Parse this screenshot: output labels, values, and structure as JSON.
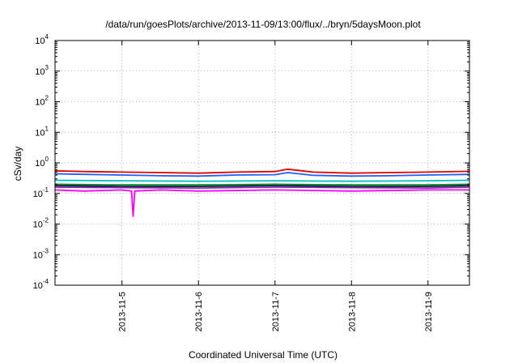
{
  "chart_data": {
    "type": "line",
    "title": "/data/run/goesPlots/archive/2013-11-09/13:00/flux/../bryn/5daysMoon.plot",
    "xlabel": "Coordinated Universal Time (UTC)",
    "ylabel": "cSv/day",
    "yscale": "log",
    "ylim": [
      0.0001,
      10000
    ],
    "xlim": [
      "2013-11-04T03:00",
      "2013-11-09T13:00"
    ],
    "grid": true,
    "legend": "none",
    "y_ticks": [
      {
        "base": "10",
        "exp": "-4"
      },
      {
        "base": "10",
        "exp": "-3"
      },
      {
        "base": "10",
        "exp": "-2"
      },
      {
        "base": "10",
        "exp": "-1"
      },
      {
        "base": "10",
        "exp": "0"
      },
      {
        "base": "10",
        "exp": "1"
      },
      {
        "base": "10",
        "exp": "2"
      },
      {
        "base": "10",
        "exp": "3"
      },
      {
        "base": "10",
        "exp": "4"
      }
    ],
    "x_ticks": [
      "2013-11-5",
      "2013-11-6",
      "2013-11-7",
      "2013-11-8",
      "2013-11-9"
    ],
    "series": [
      {
        "color": "#e00000",
        "x": [
          "2013-11-04T03:00",
          "2013-11-04T12:00",
          "2013-11-05T00:00",
          "2013-11-05T12:00",
          "2013-11-06T00:00",
          "2013-11-06T12:00",
          "2013-11-07T00:00",
          "2013-11-07T04:00",
          "2013-11-07T12:00",
          "2013-11-08T00:00",
          "2013-11-08T12:00",
          "2013-11-09T00:00",
          "2013-11-09T13:00"
        ],
        "y": [
          0.55,
          0.52,
          0.5,
          0.48,
          0.46,
          0.5,
          0.52,
          0.62,
          0.5,
          0.46,
          0.48,
          0.5,
          0.53
        ]
      },
      {
        "color": "#1f5fff",
        "x": [
          "2013-11-04T03:00",
          "2013-11-04T12:00",
          "2013-11-05T00:00",
          "2013-11-05T12:00",
          "2013-11-06T00:00",
          "2013-11-06T12:00",
          "2013-11-07T00:00",
          "2013-11-07T04:00",
          "2013-11-07T12:00",
          "2013-11-08T00:00",
          "2013-11-08T12:00",
          "2013-11-09T00:00",
          "2013-11-09T13:00"
        ],
        "y": [
          0.44,
          0.42,
          0.4,
          0.38,
          0.37,
          0.4,
          0.41,
          0.48,
          0.39,
          0.37,
          0.38,
          0.4,
          0.42
        ]
      },
      {
        "color": "#00c0c0",
        "x": [
          "2013-11-04T03:00",
          "2013-11-05T00:00",
          "2013-11-06T00:00",
          "2013-11-07T00:00",
          "2013-11-08T00:00",
          "2013-11-09T00:00",
          "2013-11-09T13:00"
        ],
        "y": [
          0.27,
          0.26,
          0.25,
          0.26,
          0.25,
          0.26,
          0.27
        ]
      },
      {
        "color": "#008a3a",
        "x": [
          "2013-11-04T03:00",
          "2013-11-05T00:00",
          "2013-11-06T00:00",
          "2013-11-07T00:00",
          "2013-11-08T00:00",
          "2013-11-09T00:00",
          "2013-11-09T13:00"
        ],
        "y": [
          0.2,
          0.19,
          0.19,
          0.2,
          0.19,
          0.19,
          0.2
        ]
      },
      {
        "color": "#1a1a1a",
        "x": [
          "2013-11-04T03:00",
          "2013-11-05T00:00",
          "2013-11-06T00:00",
          "2013-11-07T00:00",
          "2013-11-08T00:00",
          "2013-11-09T00:00",
          "2013-11-09T13:00"
        ],
        "y": [
          0.18,
          0.17,
          0.17,
          0.18,
          0.17,
          0.17,
          0.18
        ]
      },
      {
        "color": "#7b2fbf",
        "x": [
          "2013-11-04T03:00",
          "2013-11-05T00:00",
          "2013-11-06T00:00",
          "2013-11-07T00:00",
          "2013-11-08T00:00",
          "2013-11-09T00:00",
          "2013-11-09T13:00"
        ],
        "y": [
          0.16,
          0.155,
          0.15,
          0.16,
          0.155,
          0.15,
          0.16
        ]
      },
      {
        "color": "#ff00ff",
        "x": [
          "2013-11-04T03:00",
          "2013-11-04T12:00",
          "2013-11-05T00:00",
          "2013-11-05T03:00",
          "2013-11-05T03:30",
          "2013-11-05T04:00",
          "2013-11-05T12:00",
          "2013-11-06T00:00",
          "2013-11-07T00:00",
          "2013-11-08T00:00",
          "2013-11-09T00:00",
          "2013-11-09T13:00"
        ],
        "y": [
          0.13,
          0.12,
          0.13,
          0.12,
          0.018,
          0.12,
          0.13,
          0.12,
          0.13,
          0.12,
          0.13,
          0.13
        ]
      }
    ]
  }
}
